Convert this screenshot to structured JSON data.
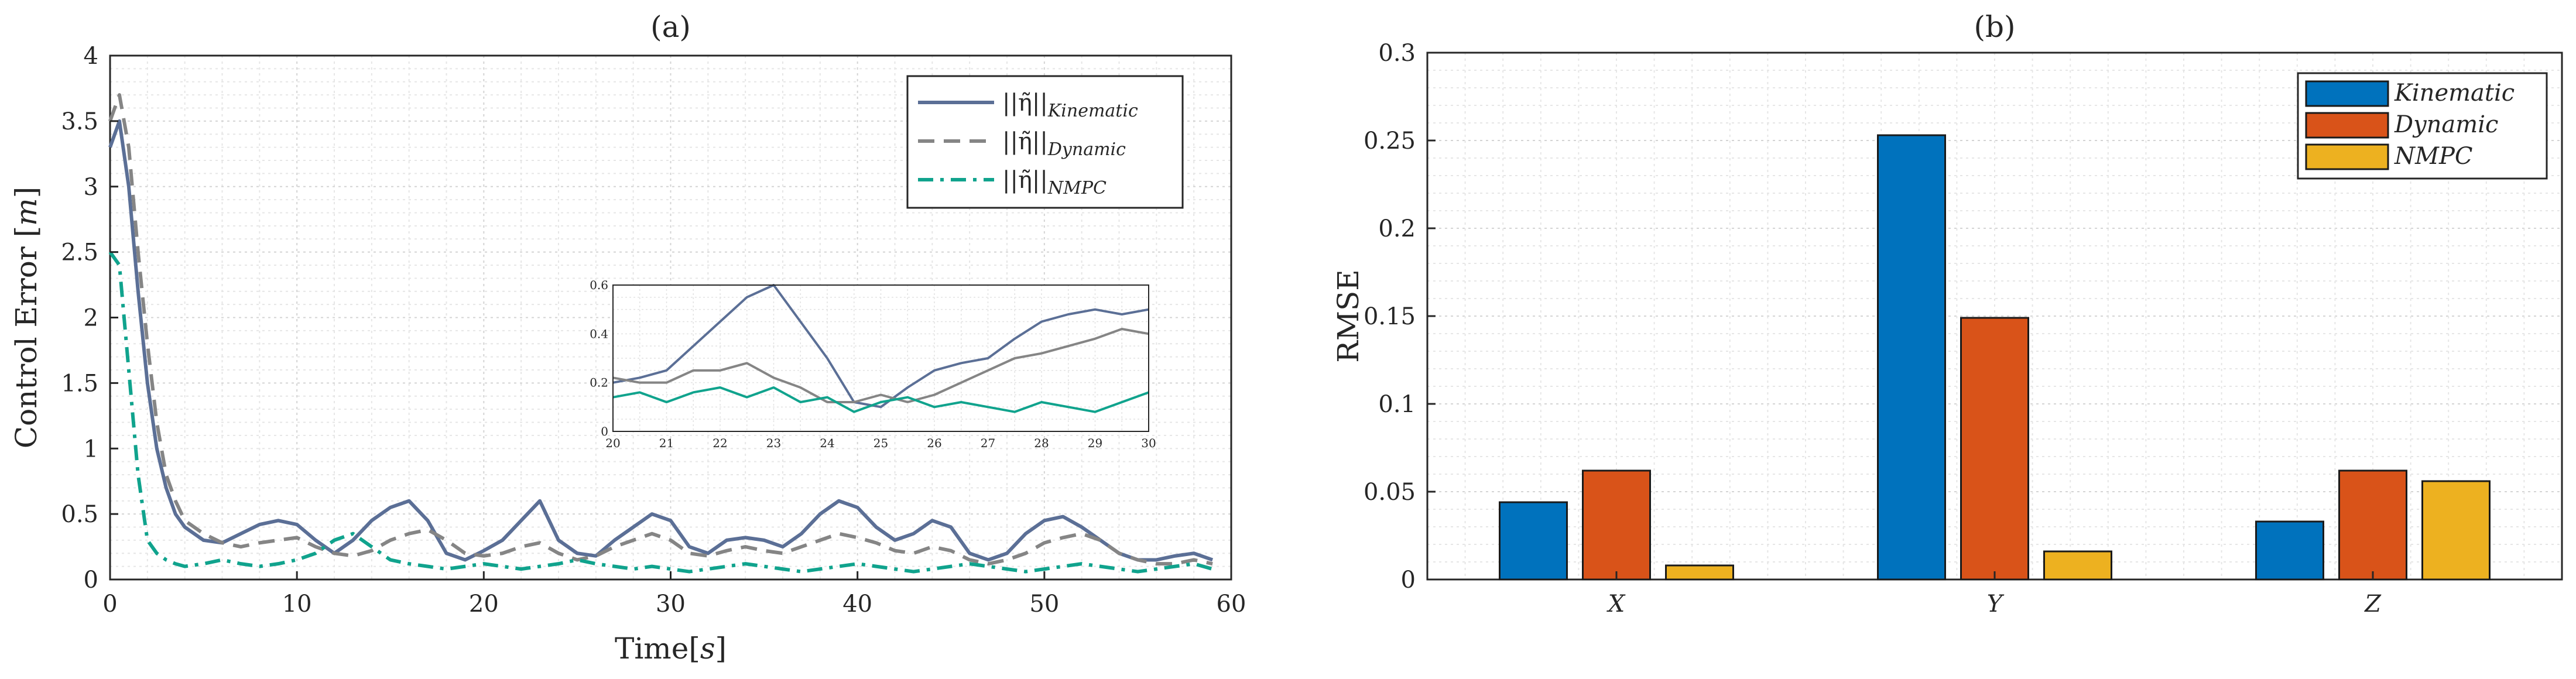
{
  "chart_data": [
    {
      "panel": "(a)",
      "type": "line",
      "title": "(a)",
      "xlabel": "Time",
      "xlabel_unit": "s",
      "ylabel": "Control Error",
      "ylabel_unit": "m",
      "xlim": [
        0,
        60
      ],
      "ylim": [
        0,
        4
      ],
      "xticks": [
        "0",
        "10",
        "20",
        "30",
        "40",
        "50",
        "60"
      ],
      "yticks": [
        "0",
        "0.5",
        "1",
        "1.5",
        "2",
        "2.5",
        "3",
        "3.5",
        "4"
      ],
      "grid": true,
      "legend_position": "top-right",
      "series": [
        {
          "name": "Kinematic",
          "legend_norm": "||η̃||",
          "color": "#5b6f96",
          "dash": "solid",
          "x": [
            0,
            0.5,
            1,
            1.5,
            2,
            2.5,
            3,
            3.5,
            4,
            5,
            6,
            7,
            8,
            9,
            10,
            11,
            12,
            13,
            14,
            15,
            16,
            17,
            18,
            19,
            20,
            21,
            22,
            23,
            24,
            25,
            26,
            27,
            28,
            29,
            30,
            31,
            32,
            33,
            34,
            35,
            36,
            37,
            38,
            39,
            40,
            41,
            42,
            43,
            44,
            45,
            46,
            47,
            48,
            49,
            50,
            51,
            52,
            53,
            54,
            55,
            56,
            57,
            58,
            59
          ],
          "values": [
            3.3,
            3.5,
            3.0,
            2.2,
            1.5,
            1.0,
            0.7,
            0.5,
            0.4,
            0.3,
            0.28,
            0.35,
            0.42,
            0.45,
            0.42,
            0.3,
            0.2,
            0.3,
            0.45,
            0.55,
            0.6,
            0.45,
            0.2,
            0.15,
            0.22,
            0.3,
            0.45,
            0.6,
            0.3,
            0.2,
            0.18,
            0.3,
            0.4,
            0.5,
            0.45,
            0.25,
            0.2,
            0.3,
            0.32,
            0.3,
            0.25,
            0.35,
            0.5,
            0.6,
            0.55,
            0.4,
            0.3,
            0.35,
            0.45,
            0.4,
            0.2,
            0.15,
            0.2,
            0.35,
            0.45,
            0.48,
            0.4,
            0.3,
            0.2,
            0.15,
            0.15,
            0.18,
            0.2,
            0.15
          ]
        },
        {
          "name": "Dynamic",
          "legend_norm": "||η̃||",
          "color": "#858585",
          "dash": "dashed",
          "x": [
            0,
            0.5,
            1,
            1.5,
            2,
            2.5,
            3,
            3.5,
            4,
            5,
            6,
            7,
            8,
            9,
            10,
            11,
            12,
            13,
            14,
            15,
            16,
            17,
            18,
            19,
            20,
            21,
            22,
            23,
            24,
            25,
            26,
            27,
            28,
            29,
            30,
            31,
            32,
            33,
            34,
            35,
            36,
            37,
            38,
            39,
            40,
            41,
            42,
            43,
            44,
            45,
            46,
            47,
            48,
            49,
            50,
            51,
            52,
            53,
            54,
            55,
            56,
            57,
            58,
            59
          ],
          "values": [
            3.5,
            3.7,
            3.3,
            2.5,
            1.8,
            1.2,
            0.8,
            0.6,
            0.45,
            0.35,
            0.28,
            0.25,
            0.28,
            0.3,
            0.32,
            0.25,
            0.2,
            0.18,
            0.22,
            0.3,
            0.35,
            0.38,
            0.3,
            0.2,
            0.18,
            0.2,
            0.25,
            0.28,
            0.2,
            0.15,
            0.18,
            0.25,
            0.3,
            0.35,
            0.3,
            0.2,
            0.18,
            0.22,
            0.25,
            0.22,
            0.2,
            0.25,
            0.3,
            0.35,
            0.32,
            0.28,
            0.22,
            0.2,
            0.25,
            0.22,
            0.15,
            0.12,
            0.15,
            0.2,
            0.28,
            0.32,
            0.35,
            0.3,
            0.2,
            0.15,
            0.12,
            0.12,
            0.15,
            0.12
          ]
        },
        {
          "name": "NMPC",
          "legend_norm": "||η̃||",
          "color": "#10a38d",
          "dash": "dashdot",
          "x": [
            0,
            0.5,
            1,
            1.5,
            2,
            2.5,
            3,
            3.5,
            4,
            5,
            6,
            7,
            8,
            9,
            10,
            11,
            12,
            13,
            14,
            15,
            16,
            17,
            18,
            19,
            20,
            21,
            22,
            23,
            24,
            25,
            26,
            27,
            28,
            29,
            30,
            31,
            32,
            33,
            34,
            35,
            36,
            37,
            38,
            39,
            40,
            41,
            42,
            43,
            44,
            45,
            46,
            47,
            48,
            49,
            50,
            51,
            52,
            53,
            54,
            55,
            56,
            57,
            58,
            59
          ],
          "values": [
            2.5,
            2.4,
            1.6,
            0.8,
            0.3,
            0.2,
            0.15,
            0.12,
            0.1,
            0.12,
            0.15,
            0.12,
            0.1,
            0.12,
            0.15,
            0.2,
            0.3,
            0.35,
            0.25,
            0.15,
            0.12,
            0.1,
            0.08,
            0.1,
            0.12,
            0.1,
            0.08,
            0.1,
            0.12,
            0.15,
            0.12,
            0.1,
            0.08,
            0.1,
            0.08,
            0.06,
            0.08,
            0.1,
            0.12,
            0.1,
            0.08,
            0.06,
            0.08,
            0.1,
            0.12,
            0.1,
            0.08,
            0.06,
            0.08,
            0.1,
            0.12,
            0.1,
            0.08,
            0.06,
            0.08,
            0.1,
            0.12,
            0.1,
            0.08,
            0.06,
            0.08,
            0.1,
            0.12,
            0.08
          ]
        }
      ],
      "inset": {
        "xlim": [
          20,
          30
        ],
        "ylim": [
          0,
          0.6
        ],
        "xticks": [
          "20",
          "21",
          "22",
          "23",
          "24",
          "25",
          "26",
          "27",
          "28",
          "29",
          "30"
        ],
        "yticks": [
          "0",
          "0.2",
          "0.4",
          "0.6"
        ],
        "x": [
          20,
          20.5,
          21,
          21.5,
          22,
          22.5,
          23,
          23.5,
          24,
          24.5,
          25,
          25.5,
          26,
          26.5,
          27,
          27.5,
          28,
          28.5,
          29,
          29.5,
          30
        ],
        "Kinematic": [
          0.2,
          0.22,
          0.25,
          0.35,
          0.45,
          0.55,
          0.6,
          0.45,
          0.3,
          0.12,
          0.1,
          0.18,
          0.25,
          0.28,
          0.3,
          0.38,
          0.45,
          0.48,
          0.5,
          0.48,
          0.5
        ],
        "Dynamic": [
          0.22,
          0.2,
          0.2,
          0.25,
          0.25,
          0.28,
          0.22,
          0.18,
          0.12,
          0.12,
          0.15,
          0.12,
          0.15,
          0.2,
          0.25,
          0.3,
          0.32,
          0.35,
          0.38,
          0.42,
          0.4
        ],
        "NMPC": [
          0.14,
          0.16,
          0.12,
          0.16,
          0.18,
          0.14,
          0.18,
          0.12,
          0.14,
          0.08,
          0.12,
          0.14,
          0.1,
          0.12,
          0.1,
          0.08,
          0.12,
          0.1,
          0.08,
          0.12,
          0.16
        ]
      }
    },
    {
      "panel": "(b)",
      "type": "bar",
      "title": "(b)",
      "xlabel": "",
      "ylabel": "RMSE",
      "ylim": [
        0,
        0.3
      ],
      "yticks": [
        "0",
        "0.05",
        "0.1",
        "0.15",
        "0.2",
        "0.25",
        "0.3"
      ],
      "categories": [
        "X",
        "Y",
        "Z"
      ],
      "grid": true,
      "legend_position": "top-right",
      "series": [
        {
          "name": "Kinematic",
          "color": "#0072bd",
          "values": [
            0.044,
            0.253,
            0.033
          ]
        },
        {
          "name": "Dynamic",
          "color": "#d95319",
          "values": [
            0.062,
            0.149,
            0.062
          ]
        },
        {
          "name": "NMPC",
          "color": "#edb120",
          "values": [
            0.008,
            0.016,
            0.056
          ]
        }
      ]
    }
  ]
}
